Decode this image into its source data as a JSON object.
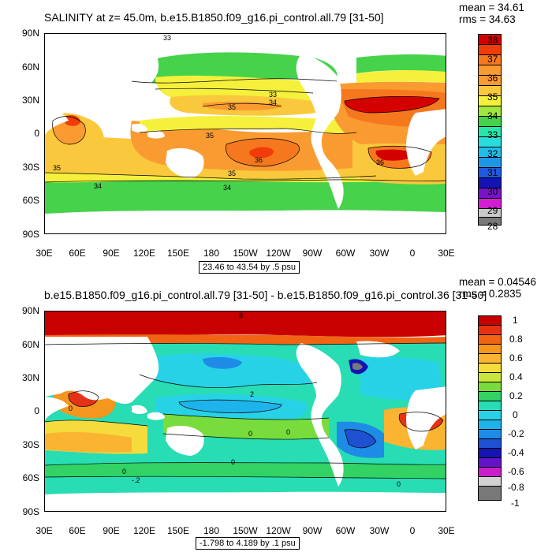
{
  "panels": [
    {
      "title": "SALINITY at z=  45.0m, b.e15.B1850.f09_g16.pi_control.all.79 [31-50]",
      "stats": {
        "mean": "mean = 34.61",
        "rms": "rms = 34.63"
      },
      "y_labels": [
        "90N",
        "60N",
        "30N",
        "0",
        "30S",
        "60S",
        "90S"
      ],
      "x_labels": [
        "30E",
        "60E",
        "90E",
        "120E",
        "150E",
        "180",
        "150W",
        "120W",
        "90W",
        "60W",
        "30W",
        "0",
        "30E"
      ],
      "range_text": "23.46 to 43.54 by .5 psu",
      "colorbar": {
        "labels": [
          "38",
          "37",
          "36",
          "35",
          "34",
          "33",
          "32",
          "31",
          "30",
          "29",
          "28"
        ],
        "colors": [
          "#d40000",
          "#f03c0a",
          "#f5781e",
          "#fa9b32",
          "#fac83c",
          "#f5f03c",
          "#a0e63c",
          "#46d24b",
          "#28e6aa",
          "#2bdcdc",
          "#1ebeeb",
          "#1e96e6",
          "#1e5ae1",
          "#1414b4",
          "#7814c8",
          "#d21ed2",
          "#c8c8c8",
          "#787878"
        ]
      },
      "contour_labels": [
        "33",
        "35",
        "33",
        "34",
        "35",
        "36",
        "35",
        "34",
        "36",
        "35",
        "34"
      ]
    },
    {
      "title": "b.e15.B1850.f09_g16.pi_control.all.79 [31-50] - b.e15.B1850.f09_g16.pi_control.36 [31-50]",
      "stats": {
        "mean": "mean = 0.04546",
        "rms": "rms = 0.2835"
      },
      "y_labels": [
        "90N",
        "60N",
        "30N",
        "0",
        "30S",
        "60S",
        "90S"
      ],
      "x_labels": [
        "30E",
        "60E",
        "90E",
        "120E",
        "150E",
        "180",
        "150W",
        "120W",
        "90W",
        "60W",
        "30W",
        "0",
        "30E"
      ],
      "range_text": "-1.798 to 4.189 by .1 psu",
      "colorbar": {
        "labels": [
          "1",
          "0.8",
          "0.6",
          "0.4",
          "0.2",
          "0",
          "-0.2",
          "-0.4",
          "-0.6",
          "-0.8",
          "-1"
        ],
        "colors": [
          "#c80000",
          "#e63214",
          "#f06414",
          "#f5961e",
          "#fab432",
          "#f5dc3c",
          "#c8e63c",
          "#78dc3c",
          "#32d264",
          "#28dcb4",
          "#28d2e6",
          "#1eb4eb",
          "#1e8ce6",
          "#1e50d2",
          "#1414b4",
          "#6414c8",
          "#c81ec8",
          "#d2d2d2",
          "#787878"
        ]
      },
      "contour_labels": [
        "8",
        "2",
        "0",
        "0",
        "0",
        "0",
        "0",
        "-.2",
        "0"
      ]
    }
  ]
}
